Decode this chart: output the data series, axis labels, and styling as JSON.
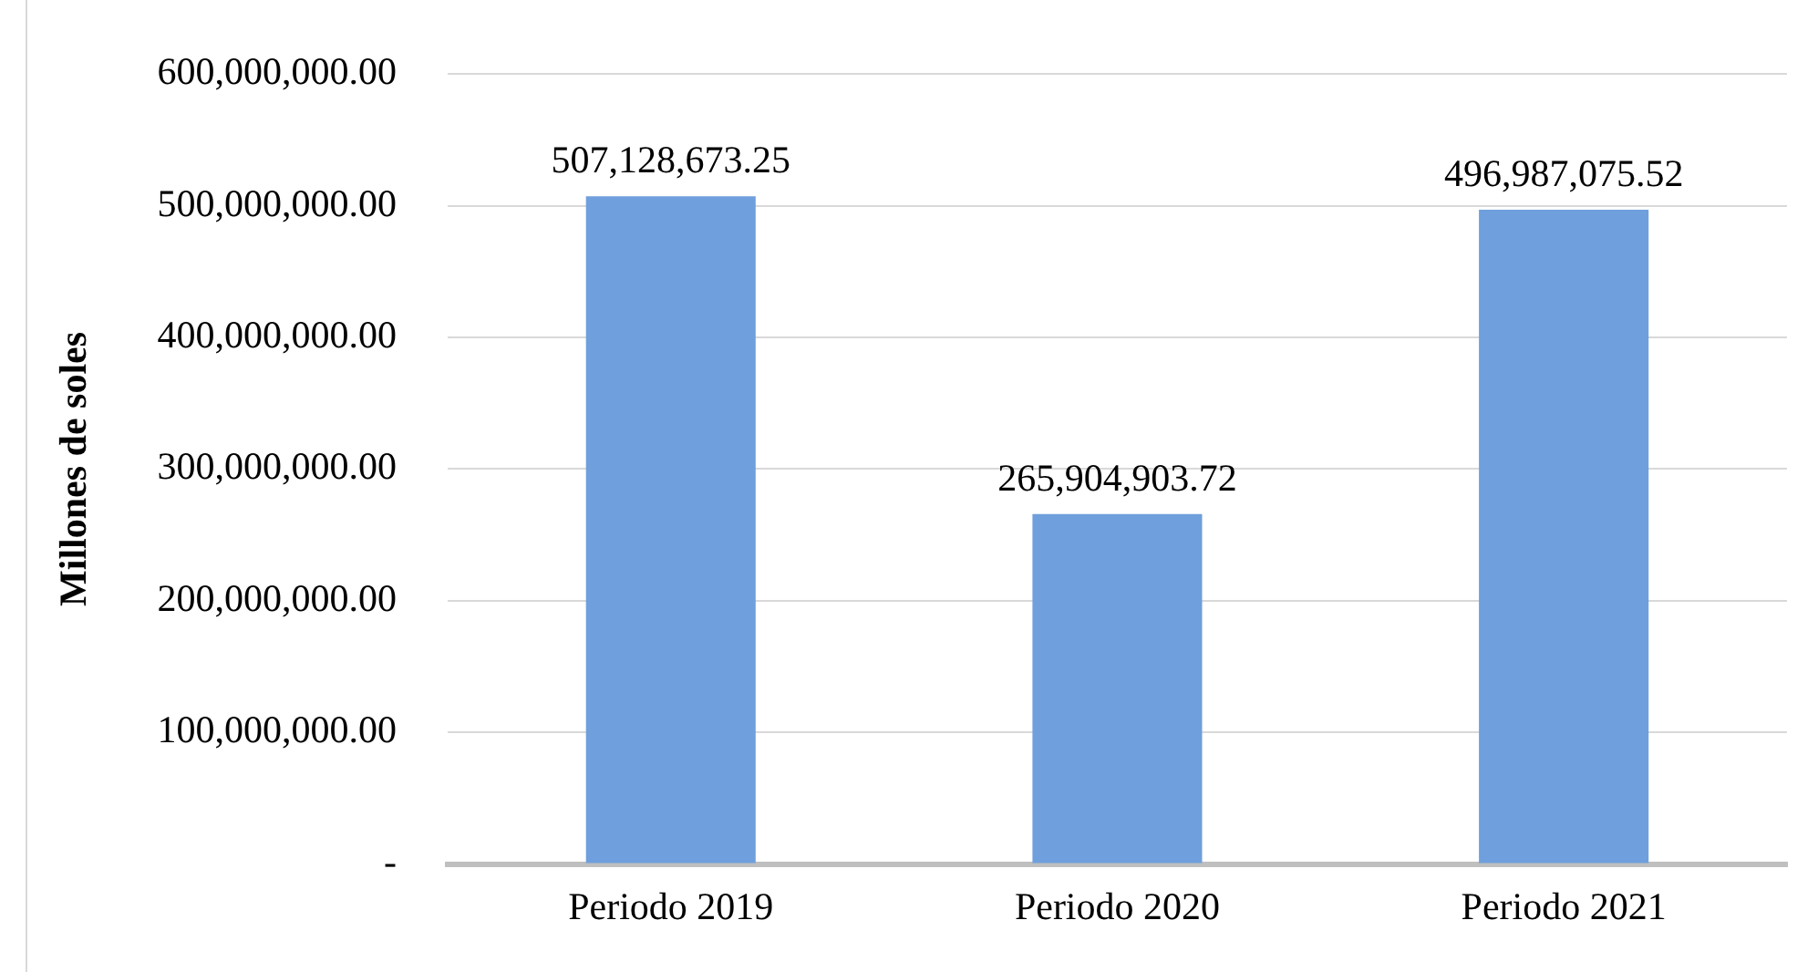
{
  "chart_data": {
    "type": "bar",
    "ylabel": "Millones de soles",
    "categories": [
      "Periodo 2019",
      "Periodo 2020",
      "Periodo 2021"
    ],
    "values": [
      507128673.25,
      265904903.72,
      496987075.52
    ],
    "value_labels": [
      "507,128,673.25",
      "265,904,903.72",
      "496,987,075.52"
    ],
    "color": "#6f9fdc",
    "ylim": [
      0,
      600000000
    ],
    "yticks": [
      {
        "value": 0,
        "label": "-"
      },
      {
        "value": 100000000,
        "label": "100,000,000.00"
      },
      {
        "value": 200000000,
        "label": "200,000,000.00"
      },
      {
        "value": 300000000,
        "label": "300,000,000.00"
      },
      {
        "value": 400000000,
        "label": "400,000,000.00"
      },
      {
        "value": 500000000,
        "label": "500,000,000.00"
      },
      {
        "value": 600000000,
        "label": "600,000,000.00"
      }
    ],
    "grid": "y",
    "legend": false
  }
}
